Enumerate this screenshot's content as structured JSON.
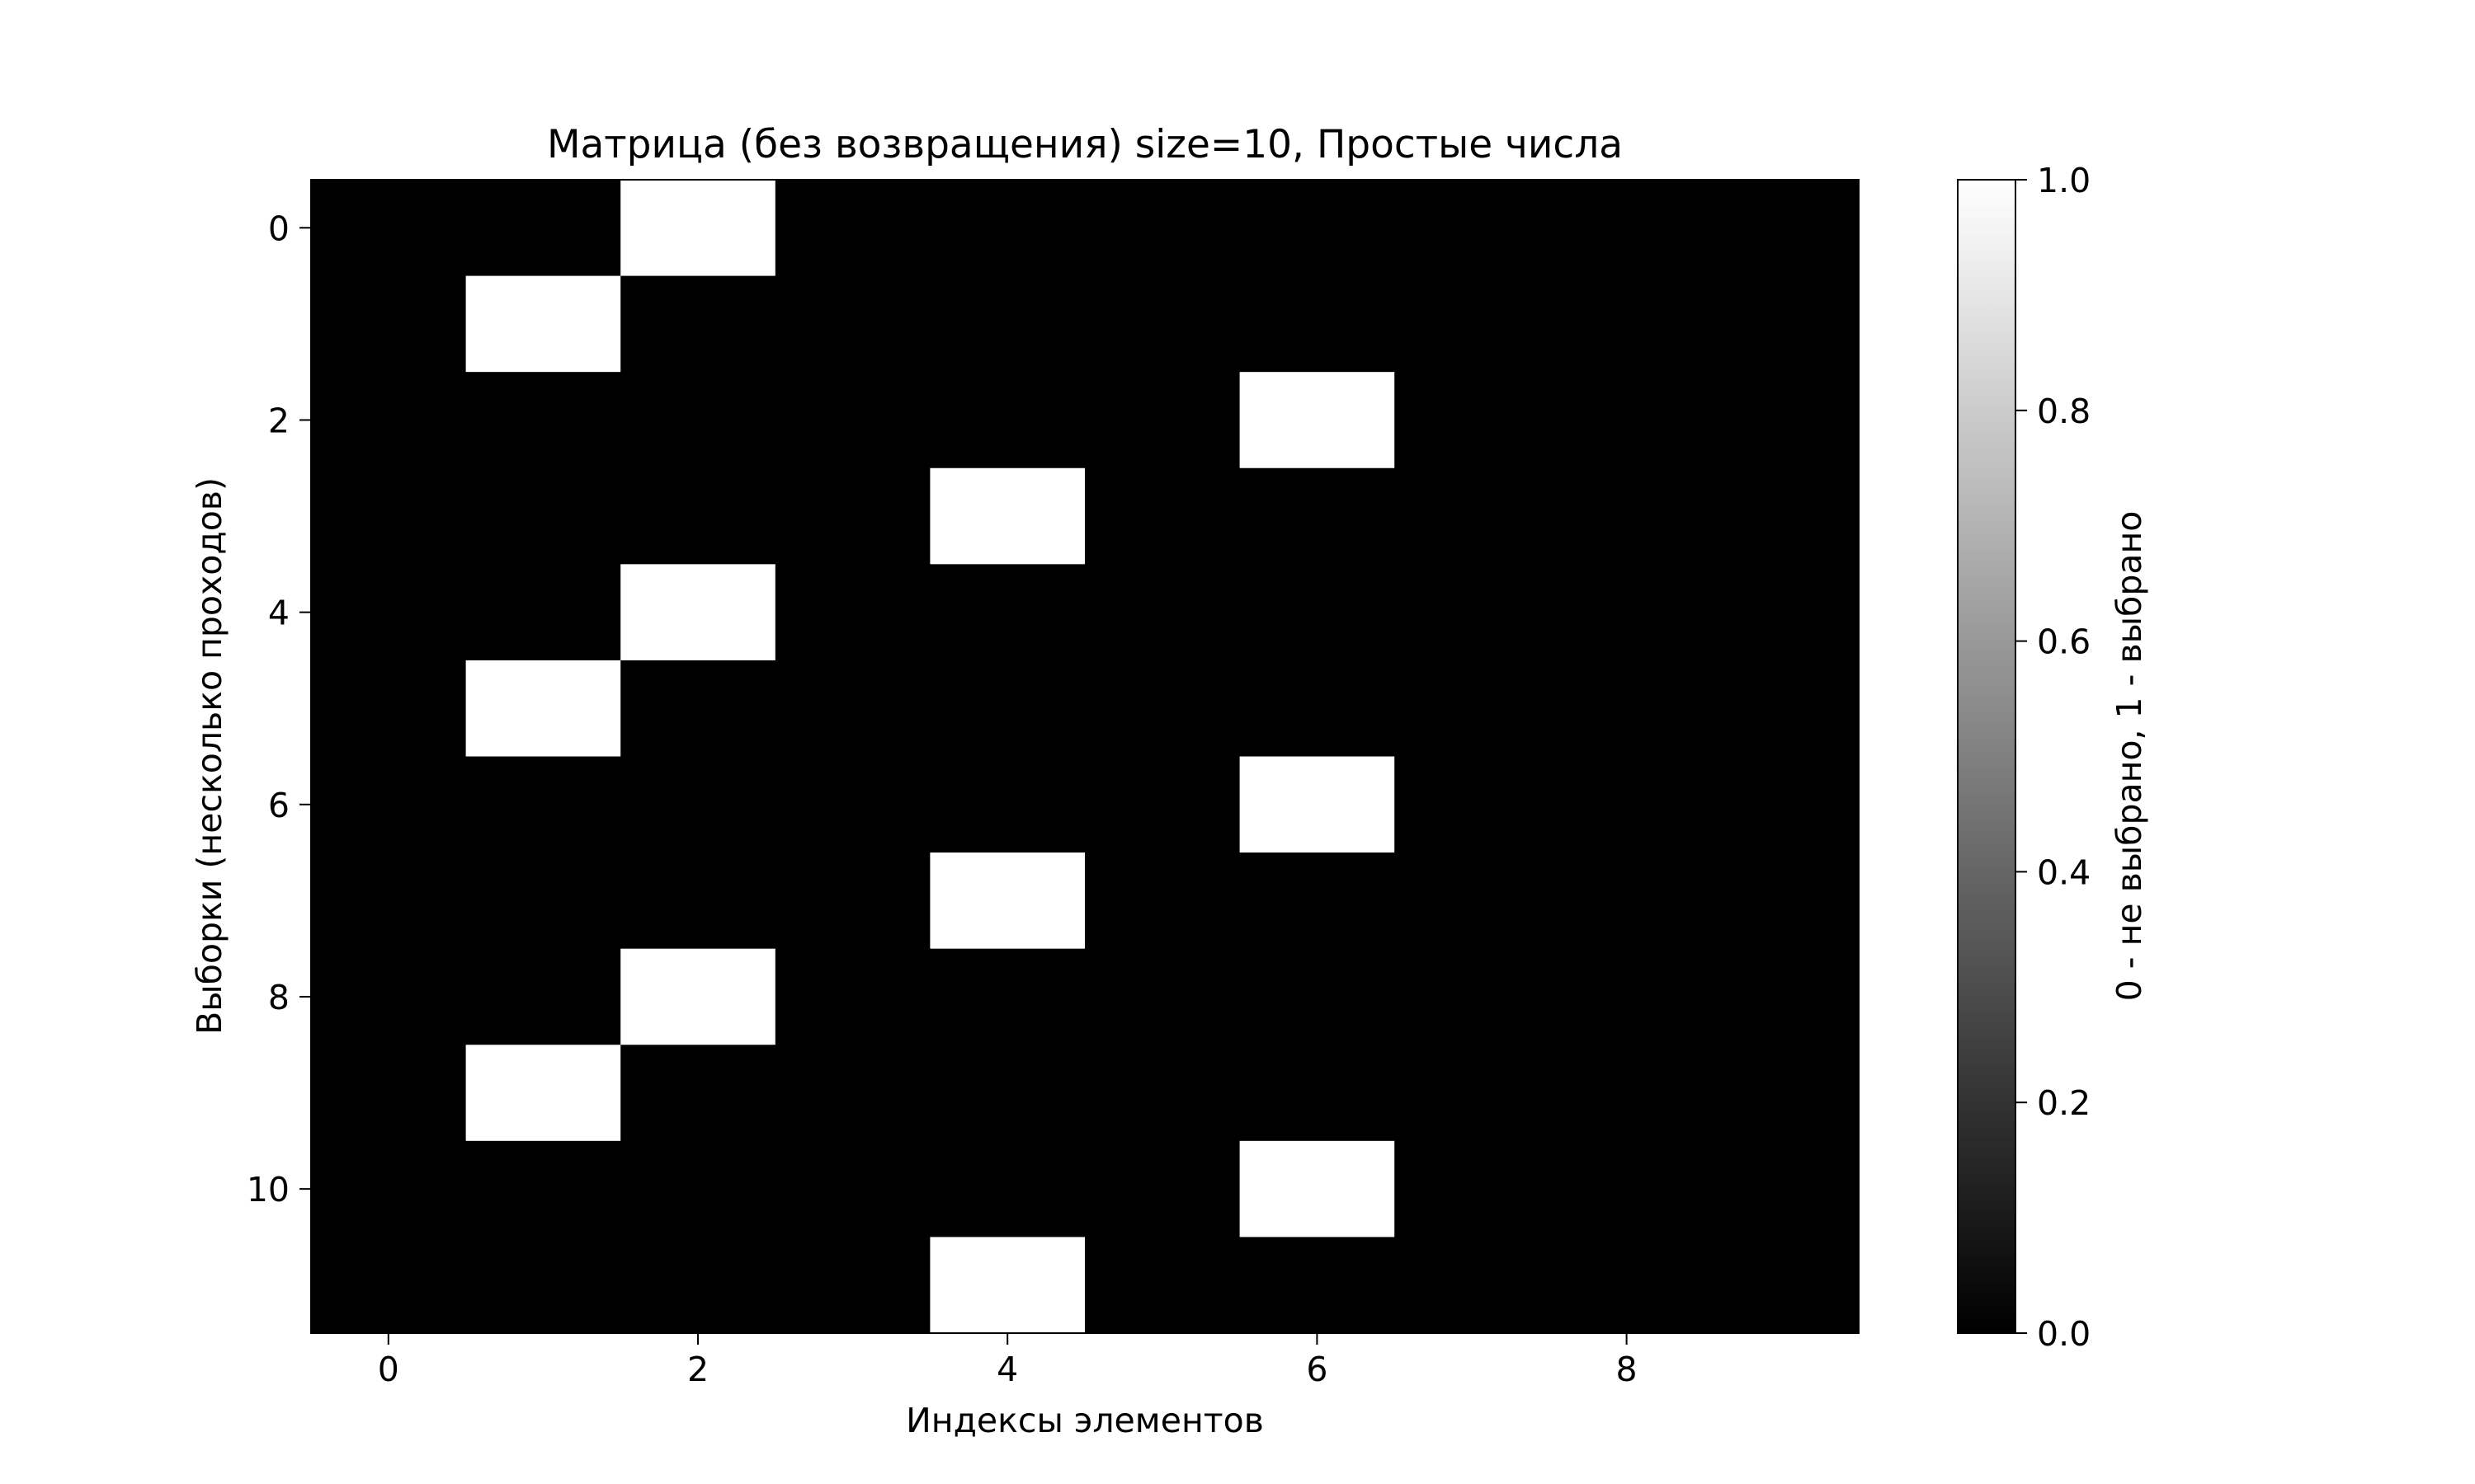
{
  "chart_data": {
    "type": "heatmap",
    "title": "Матрица (без возвращения) size=10, Простые числа",
    "xlabel": "Индексы элементов",
    "ylabel": "Выборки (несколько проходов)",
    "colorbar_label": "0 - не выбрано, 1 - выбрано",
    "colormap": "gray",
    "colors": {
      "low": "#000000",
      "high": "#ffffff"
    },
    "n_rows": 12,
    "n_cols": 10,
    "xticks": [
      0,
      2,
      4,
      6,
      8
    ],
    "yticks": [
      0,
      2,
      4,
      6,
      8,
      10
    ],
    "colorbar_range": [
      0.0,
      1.0
    ],
    "colorbar_ticks": [
      "0.0",
      "0.2",
      "0.4",
      "0.6",
      "0.8",
      "1.0"
    ],
    "grid": false,
    "values": [
      [
        0,
        0,
        1,
        0,
        0,
        0,
        0,
        0,
        0,
        0
      ],
      [
        0,
        1,
        0,
        0,
        0,
        0,
        0,
        0,
        0,
        0
      ],
      [
        0,
        0,
        0,
        0,
        0,
        0,
        1,
        0,
        0,
        0
      ],
      [
        0,
        0,
        0,
        0,
        1,
        0,
        0,
        0,
        0,
        0
      ],
      [
        0,
        0,
        1,
        0,
        0,
        0,
        0,
        0,
        0,
        0
      ],
      [
        0,
        1,
        0,
        0,
        0,
        0,
        0,
        0,
        0,
        0
      ],
      [
        0,
        0,
        0,
        0,
        0,
        0,
        1,
        0,
        0,
        0
      ],
      [
        0,
        0,
        0,
        0,
        1,
        0,
        0,
        0,
        0,
        0
      ],
      [
        0,
        0,
        1,
        0,
        0,
        0,
        0,
        0,
        0,
        0
      ],
      [
        0,
        1,
        0,
        0,
        0,
        0,
        0,
        0,
        0,
        0
      ],
      [
        0,
        0,
        0,
        0,
        0,
        0,
        1,
        0,
        0,
        0
      ],
      [
        0,
        0,
        0,
        0,
        1,
        0,
        0,
        0,
        0,
        0
      ]
    ]
  }
}
